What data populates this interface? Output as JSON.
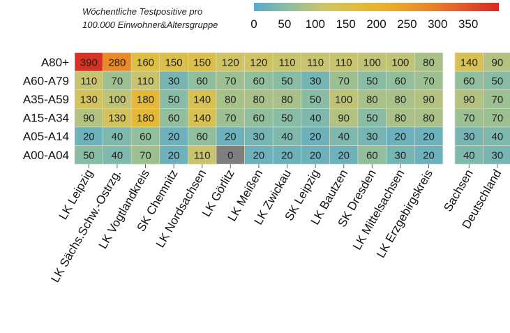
{
  "chart_data": {
    "type": "heatmap",
    "legend_title_line1": "Wöchentliche Testpositive pro",
    "legend_title_line2": "100.000 Einwohner&Altersgruppe",
    "legend_ticks": [
      0,
      50,
      100,
      150,
      200,
      250,
      300,
      350
    ],
    "legend_range": [
      0,
      400
    ],
    "color_scale": [
      "#5aa9cc",
      "#8fbf9e",
      "#cdc46a",
      "#e3bc3a",
      "#e9a92a",
      "#e8872a",
      "#e2572a",
      "#d62a22"
    ],
    "rows": [
      "A80+",
      "A60-A79",
      "A35-A59",
      "A15-A34",
      "A05-A14",
      "A00-A04"
    ],
    "groups": [
      {
        "columns": [
          "LK Leipzig",
          "LK Sächs.Schw.-Ostrzg.",
          "LK Vogtlandkreis",
          "SK Chemnitz",
          "LK Nordsachsen",
          "LK Görlitz",
          "LK Meißen",
          "LK Zwickau",
          "SK Leipzig",
          "LK Bautzen",
          "SK Dresden",
          "LK Mittelsachsen",
          "LK Erzgebirgskreis"
        ],
        "values": [
          [
            390,
            280,
            160,
            150,
            150,
            120,
            120,
            110,
            110,
            110,
            100,
            100,
            80
          ],
          [
            110,
            70,
            110,
            30,
            60,
            70,
            60,
            50,
            30,
            70,
            50,
            60,
            70
          ],
          [
            130,
            100,
            180,
            50,
            140,
            80,
            80,
            80,
            50,
            100,
            80,
            80,
            90
          ],
          [
            90,
            130,
            180,
            60,
            140,
            70,
            60,
            50,
            40,
            90,
            50,
            80,
            80
          ],
          [
            20,
            40,
            60,
            20,
            60,
            20,
            30,
            40,
            20,
            40,
            30,
            20,
            20
          ],
          [
            50,
            40,
            70,
            20,
            110,
            0,
            20,
            20,
            20,
            20,
            60,
            30,
            20
          ]
        ]
      },
      {
        "columns": [
          "Sachsen",
          "Deutschland"
        ],
        "values": [
          [
            140,
            90
          ],
          [
            60,
            50
          ],
          [
            90,
            70
          ],
          [
            70,
            70
          ],
          [
            30,
            40
          ],
          [
            40,
            30
          ]
        ]
      }
    ],
    "zero_color": "#7f7f7f"
  }
}
